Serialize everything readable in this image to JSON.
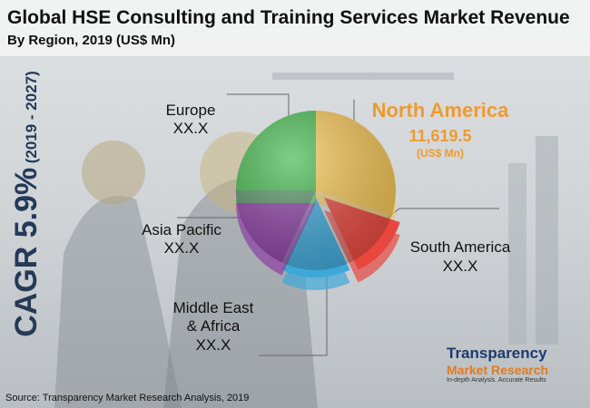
{
  "title": "Global HSE Consulting and Training Services Market Revenue",
  "subtitle": "By Region, 2019 (US$ Mn)",
  "cagr": "CAGR 5.9%",
  "cagr_period": "(2019 - 2027)",
  "source": "Source: Transparency Market Research Analysis, 2019",
  "logo": {
    "line1": "Transparency",
    "line2": "Market Research",
    "tagline": "In-depth Analysis. Accurate Results"
  },
  "chart_data": {
    "type": "pie",
    "categories": [
      "North America",
      "South America",
      "Middle East\n& Africa",
      "Asia Pacific",
      "Europe"
    ],
    "values": [
      30,
      13,
      14,
      18,
      25
    ],
    "colors": [
      "#f3c453",
      "#e8473e",
      "#3ea8d9",
      "#8b3fa3",
      "#3fb449"
    ],
    "revenue_labels": [
      "11,619.5",
      "XX.X",
      "XX.X",
      "XX.X",
      "XX.X"
    ],
    "unit": "(US$ Mn)"
  }
}
